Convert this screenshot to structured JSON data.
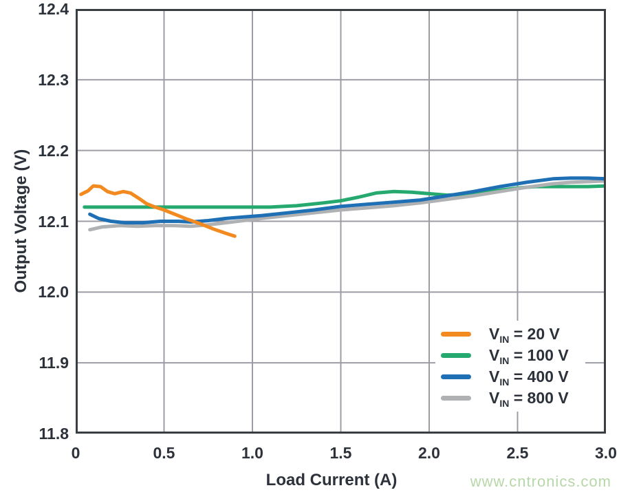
{
  "watermark": {
    "text": "www.cntronics.com",
    "color": "#b7d7a8"
  },
  "colors": {
    "text": "#2c313a",
    "grid": "#9c9ca4",
    "plot_border": "#3a3d42",
    "background": "#ffffff",
    "legend_background": "#ffffff"
  },
  "chart_data": {
    "type": "line",
    "title": "",
    "xlabel": "Load Current (A)",
    "ylabel": "Output Voltage (V)",
    "xlim": [
      0,
      3
    ],
    "ylim": [
      11.8,
      12.4
    ],
    "xtick_labels": [
      "0",
      "0.5",
      "1.0",
      "1.5",
      "2.0",
      "2.5",
      "3.0"
    ],
    "xtick_values": [
      0,
      0.5,
      1,
      1.5,
      2,
      2.5,
      3
    ],
    "ytick_labels": [
      "12.4",
      "12.3",
      "12.2",
      "12.1",
      "12.0",
      "11.9",
      "11.8"
    ],
    "ytick_values": [
      12.4,
      12.3,
      12.2,
      12.1,
      12.0,
      11.9,
      11.8
    ],
    "grid": true,
    "legend_position": "lower-right",
    "draw_order": [
      1,
      3,
      2,
      0
    ],
    "line_width": 5,
    "series": [
      {
        "name": "VIN = 20 V",
        "legend": {
          "v": "V",
          "sub": "IN",
          "rest": " = 20 V"
        },
        "color": "#f28a1f",
        "points": [
          [
            0.03,
            12.138
          ],
          [
            0.07,
            12.143
          ],
          [
            0.1,
            12.15
          ],
          [
            0.14,
            12.149
          ],
          [
            0.18,
            12.142
          ],
          [
            0.22,
            12.139
          ],
          [
            0.27,
            12.142
          ],
          [
            0.31,
            12.14
          ],
          [
            0.36,
            12.132
          ],
          [
            0.4,
            12.125
          ],
          [
            0.45,
            12.12
          ],
          [
            0.5,
            12.116
          ],
          [
            0.56,
            12.11
          ],
          [
            0.63,
            12.103
          ],
          [
            0.7,
            12.097
          ],
          [
            0.78,
            12.089
          ],
          [
            0.85,
            12.083
          ],
          [
            0.9,
            12.079
          ]
        ]
      },
      {
        "name": "VIN = 100 V",
        "legend": {
          "v": "V",
          "sub": "IN",
          "rest": " = 100 V"
        },
        "color": "#26a96f",
        "points": [
          [
            0.05,
            12.12
          ],
          [
            0.3,
            12.12
          ],
          [
            0.6,
            12.12
          ],
          [
            0.9,
            12.12
          ],
          [
            1.1,
            12.12
          ],
          [
            1.25,
            12.122
          ],
          [
            1.4,
            12.126
          ],
          [
            1.5,
            12.129
          ],
          [
            1.6,
            12.134
          ],
          [
            1.7,
            12.14
          ],
          [
            1.8,
            12.142
          ],
          [
            1.9,
            12.141
          ],
          [
            2.0,
            12.139
          ],
          [
            2.1,
            12.137
          ],
          [
            2.2,
            12.138
          ],
          [
            2.3,
            12.141
          ],
          [
            2.4,
            12.144
          ],
          [
            2.5,
            12.147
          ],
          [
            2.6,
            12.149
          ],
          [
            2.75,
            12.149
          ],
          [
            2.9,
            12.149
          ],
          [
            3.0,
            12.15
          ]
        ]
      },
      {
        "name": "VIN = 400 V",
        "legend": {
          "v": "V",
          "sub": "IN",
          "rest": " = 400 V"
        },
        "color": "#1e6fb4",
        "points": [
          [
            0.08,
            12.11
          ],
          [
            0.13,
            12.104
          ],
          [
            0.2,
            12.1
          ],
          [
            0.28,
            12.098
          ],
          [
            0.38,
            12.098
          ],
          [
            0.48,
            12.1
          ],
          [
            0.58,
            12.1
          ],
          [
            0.65,
            12.099
          ],
          [
            0.75,
            12.101
          ],
          [
            0.85,
            12.104
          ],
          [
            0.95,
            12.106
          ],
          [
            1.05,
            12.108
          ],
          [
            1.2,
            12.112
          ],
          [
            1.35,
            12.116
          ],
          [
            1.5,
            12.121
          ],
          [
            1.65,
            12.124
          ],
          [
            1.8,
            12.127
          ],
          [
            1.95,
            12.13
          ],
          [
            2.1,
            12.136
          ],
          [
            2.25,
            12.142
          ],
          [
            2.4,
            12.149
          ],
          [
            2.55,
            12.155
          ],
          [
            2.7,
            12.16
          ],
          [
            2.8,
            12.161
          ],
          [
            2.9,
            12.161
          ],
          [
            3.0,
            12.16
          ]
        ]
      },
      {
        "name": "VIN = 800 V",
        "legend": {
          "v": "V",
          "sub": "IN",
          "rest": " = 800 V"
        },
        "color": "#b0b1b3",
        "points": [
          [
            0.08,
            12.088
          ],
          [
            0.15,
            12.092
          ],
          [
            0.25,
            12.094
          ],
          [
            0.35,
            12.093
          ],
          [
            0.45,
            12.094
          ],
          [
            0.55,
            12.094
          ],
          [
            0.65,
            12.093
          ],
          [
            0.75,
            12.095
          ],
          [
            0.85,
            12.098
          ],
          [
            0.95,
            12.101
          ],
          [
            1.05,
            12.104
          ],
          [
            1.2,
            12.108
          ],
          [
            1.35,
            12.112
          ],
          [
            1.5,
            12.116
          ],
          [
            1.65,
            12.119
          ],
          [
            1.8,
            12.122
          ],
          [
            1.95,
            12.126
          ],
          [
            2.1,
            12.131
          ],
          [
            2.25,
            12.136
          ],
          [
            2.4,
            12.142
          ],
          [
            2.55,
            12.148
          ],
          [
            2.7,
            12.153
          ],
          [
            2.8,
            12.155
          ],
          [
            2.9,
            12.156
          ],
          [
            3.0,
            12.157
          ]
        ]
      }
    ]
  }
}
